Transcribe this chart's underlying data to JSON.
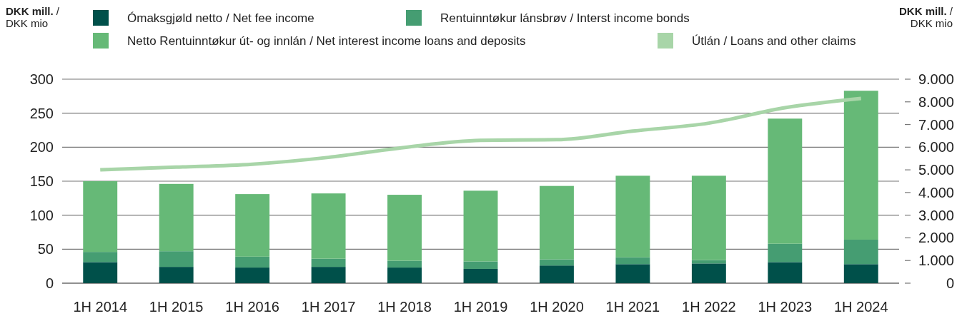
{
  "chart_data": {
    "type": "bar",
    "stacked": true,
    "categories": [
      "1H 2014",
      "1H 2015",
      "1H 2016",
      "1H 2017",
      "1H 2018",
      "1H 2019",
      "1H 2020",
      "1H 2021",
      "1H 2022",
      "1H 2023",
      "1H 2024"
    ],
    "series": [
      {
        "name": "Ómaksgjøld netto / Net fee income",
        "color": "#00504a",
        "values": [
          31,
          24,
          23,
          24,
          23,
          21,
          26,
          28,
          29,
          31,
          28
        ]
      },
      {
        "name": "Rentuinntøkur lánsbrøv / Interst income bonds",
        "color": "#459d72",
        "values": [
          15,
          23,
          16,
          12,
          10,
          11,
          9,
          10,
          5,
          27,
          36
        ]
      },
      {
        "name": "Netto Rentuinntøkur út- og innlán / Net interest income loans and deposits",
        "color": "#66b977",
        "values": [
          104,
          99,
          92,
          96,
          97,
          104,
          108,
          120,
          124,
          184,
          219
        ]
      },
      {
        "name": "Útlán / Loans and other claims",
        "color": "#a8d5a8",
        "type": "line",
        "axis": "y2",
        "values": [
          5000,
          5120,
          5250,
          5550,
          5990,
          6300,
          6330,
          6710,
          7060,
          7740,
          8150
        ]
      }
    ],
    "ylabel": "DKK mill. / DKK mio",
    "y2label": "DKK mill. / DKK mio",
    "ylim": [
      0,
      300
    ],
    "yticks": [
      0,
      50,
      100,
      150,
      200,
      250,
      300
    ],
    "y2lim": [
      0,
      9000
    ],
    "y2ticks": [
      0,
      {
        "value": 1000,
        "label": "1.000"
      },
      {
        "value": 2000,
        "label": "2.000"
      },
      {
        "value": 3000,
        "label": "3.000"
      },
      {
        "value": 4000,
        "label": "4.000"
      },
      {
        "value": 5000,
        "label": "5.000"
      },
      {
        "value": 6000,
        "label": "6.000"
      },
      {
        "value": 7000,
        "label": "7.000"
      },
      {
        "value": 8000,
        "label": "8.000"
      },
      {
        "value": 9000,
        "label": "9.000"
      }
    ],
    "grid": "y",
    "legend": "top",
    "marker": "none"
  }
}
